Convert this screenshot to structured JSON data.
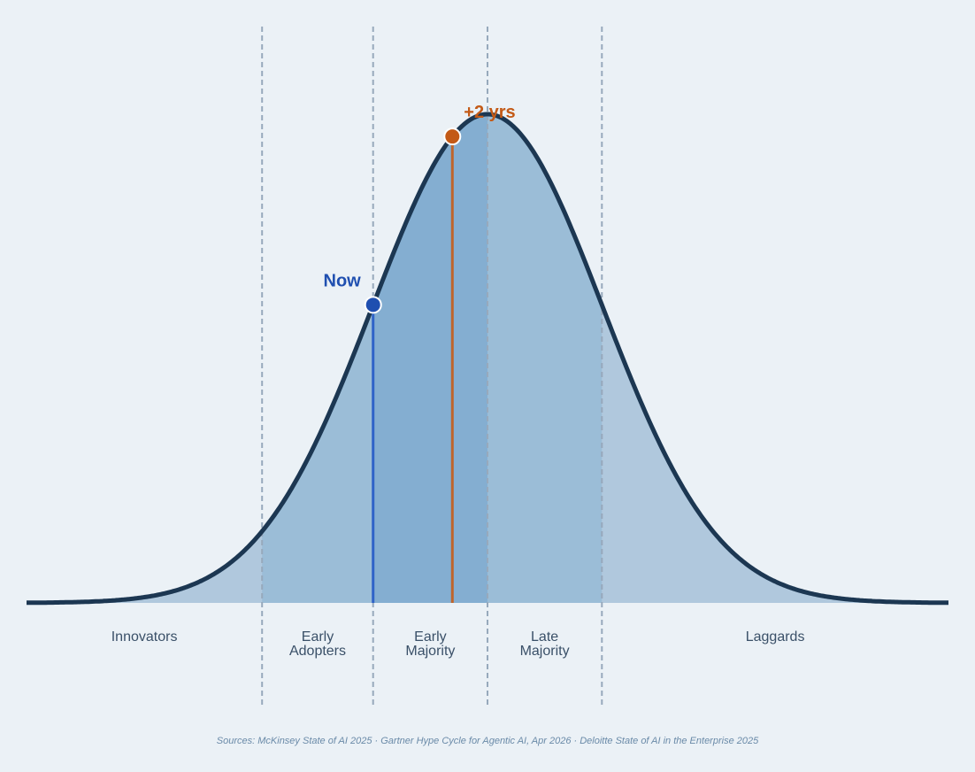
{
  "segments": [
    {
      "id": "innovators",
      "lines": [
        "Innovators"
      ],
      "start_pct": 0,
      "end_pct": 2.5
    },
    {
      "id": "early-adopters",
      "lines": [
        "Early",
        "Adopters"
      ],
      "start_pct": 2.5,
      "end_pct": 16
    },
    {
      "id": "early-majority",
      "lines": [
        "Early",
        "Majority"
      ],
      "start_pct": 16,
      "end_pct": 50
    },
    {
      "id": "late-majority",
      "lines": [
        "Late",
        "Majority"
      ],
      "start_pct": 50,
      "end_pct": 84
    },
    {
      "id": "laggards",
      "lines": [
        "Laggards"
      ],
      "start_pct": 84,
      "end_pct": 100
    }
  ],
  "markers": [
    {
      "id": "now",
      "label": "Now",
      "color": "#1f4fb0",
      "line_color": "#2f63c8",
      "position_pct": 16
    },
    {
      "id": "plus2",
      "label": "+2 yrs",
      "color": "#c35a17",
      "line_color": "#c0652a",
      "position_pct": 38
    }
  ],
  "colors": {
    "background": "#ebf1f6",
    "curve": "#1c3752",
    "fill_outer": "#b0c8dd",
    "fill_middle": "#9bbdd7",
    "fill_core": "#84aed1",
    "divider": "#97a9bc"
  },
  "sources": {
    "prefix": "Sources:",
    "items": [
      "McKinsey State of AI 2025",
      "Gartner Hype Cycle for Agentic AI, Apr 2026",
      "Deloitte State of AI in the Enterprise 2025"
    ],
    "separator": "·"
  }
}
